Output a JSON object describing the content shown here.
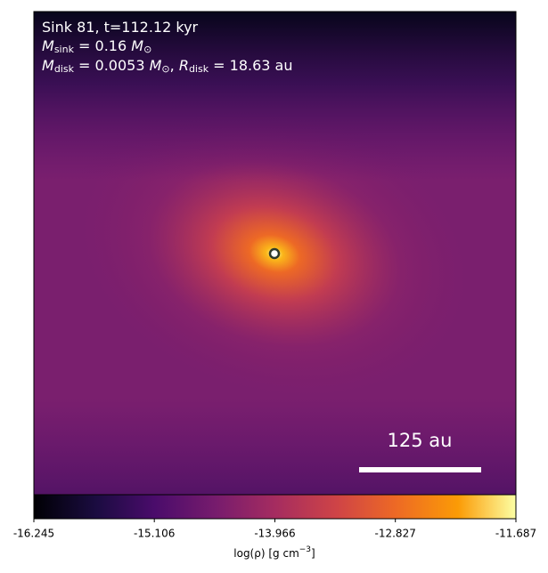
{
  "chart_data": {
    "type": "density-map",
    "annotations": [
      [
        "Sink 81, t=112.12 kyr"
      ],
      [
        "M",
        "sink",
        " = 0.16 ",
        "M",
        "⊙"
      ],
      [
        "M",
        "disk",
        " = 0.0053 ",
        "M",
        "⊙",
        ", ",
        "R",
        "disk",
        " = 18.63 au"
      ]
    ],
    "scale_bar_label": "125 au",
    "colorbar": {
      "lim": [
        -16.245,
        -11.687
      ],
      "ticks": [
        -16.245,
        -15.106,
        -13.966,
        -12.827,
        -11.687
      ],
      "label": [
        "log(ρ) [g cm",
        "−3",
        "]"
      ]
    }
  }
}
